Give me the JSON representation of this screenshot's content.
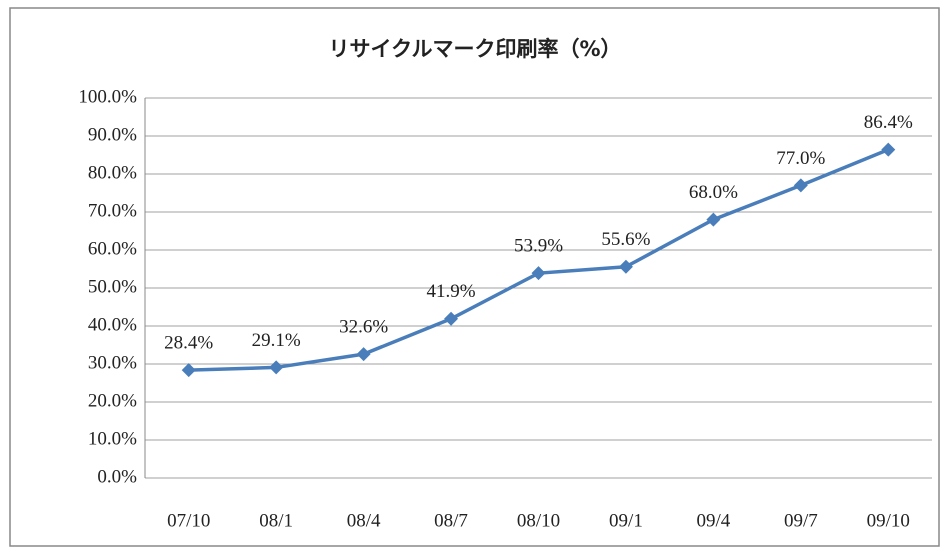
{
  "chart_data": {
    "type": "line",
    "title": "リサイクルマーク印刷率（%）",
    "categories": [
      "07/10",
      "08/1",
      "08/4",
      "08/7",
      "08/10",
      "09/1",
      "09/4",
      "09/7",
      "09/10"
    ],
    "values": [
      28.4,
      29.1,
      32.6,
      41.9,
      53.9,
      55.6,
      68.0,
      77.0,
      86.4
    ],
    "value_labels": [
      "28.4%",
      "29.1%",
      "32.6%",
      "41.9%",
      "53.9%",
      "55.6%",
      "68.0%",
      "77.0%",
      "86.4%"
    ],
    "color": "#4a7ebb",
    "ylim": [
      0,
      100
    ],
    "yticks": [
      {
        "value": 0,
        "label": "0.0%"
      },
      {
        "value": 10,
        "label": "10.0%"
      },
      {
        "value": 20,
        "label": "20.0%"
      },
      {
        "value": 30,
        "label": "30.0%"
      },
      {
        "value": 40,
        "label": "40.0%"
      },
      {
        "value": 50,
        "label": "50.0%"
      },
      {
        "value": 60,
        "label": "60.0%"
      },
      {
        "value": 70,
        "label": "70.0%"
      },
      {
        "value": 80,
        "label": "80.0%"
      },
      {
        "value": 90,
        "label": "90.0%"
      },
      {
        "value": 100,
        "label": "100.0%"
      }
    ],
    "grid": true
  }
}
